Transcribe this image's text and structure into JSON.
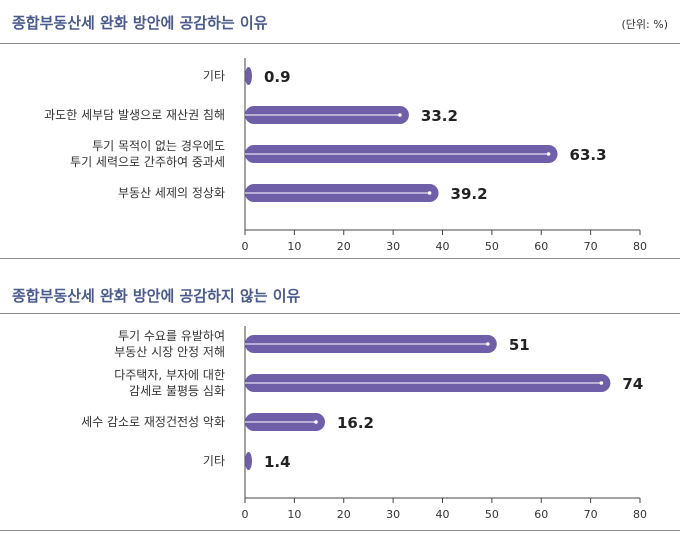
{
  "unit_label": "(단위: %)",
  "colors": {
    "bar": "#6f5fa8",
    "title": "#4a5a8c",
    "axis": "#444444"
  },
  "chart_data": [
    {
      "type": "bar",
      "orientation": "horizontal",
      "title": "종합부동산세 완화 방안에 공감하는 이유",
      "categories": [
        [
          "기타"
        ],
        [
          "과도한 세부담 발생으로 재산권 침해"
        ],
        [
          "투기 목적이 없는 경우에도",
          "투기 세력으로 간주하여 중과세"
        ],
        [
          "부동산 세제의 정상화"
        ]
      ],
      "values": [
        0.9,
        33.2,
        63.3,
        39.2
      ],
      "value_labels": [
        "0.9",
        "33.2",
        "63.3",
        "39.2"
      ],
      "xlim": [
        0,
        80
      ],
      "ticks": [
        0,
        10,
        20,
        30,
        40,
        50,
        60,
        70,
        80
      ],
      "grid": false
    },
    {
      "type": "bar",
      "orientation": "horizontal",
      "title": "종합부동산세 완화 방안에 공감하지 않는 이유",
      "categories": [
        [
          "투기 수요를 유발하여",
          "부동산 시장 안정 저해"
        ],
        [
          "다주택자, 부자에 대한",
          "감세로 불평등 심화"
        ],
        [
          "세수 감소로 재정건전성 악화"
        ],
        [
          "기타"
        ]
      ],
      "values": [
        51,
        74,
        16.2,
        1.4
      ],
      "value_labels": [
        "51",
        "74",
        "16.2",
        "1.4"
      ],
      "xlim": [
        0,
        80
      ],
      "ticks": [
        0,
        10,
        20,
        30,
        40,
        50,
        60,
        70,
        80
      ],
      "grid": false
    }
  ]
}
